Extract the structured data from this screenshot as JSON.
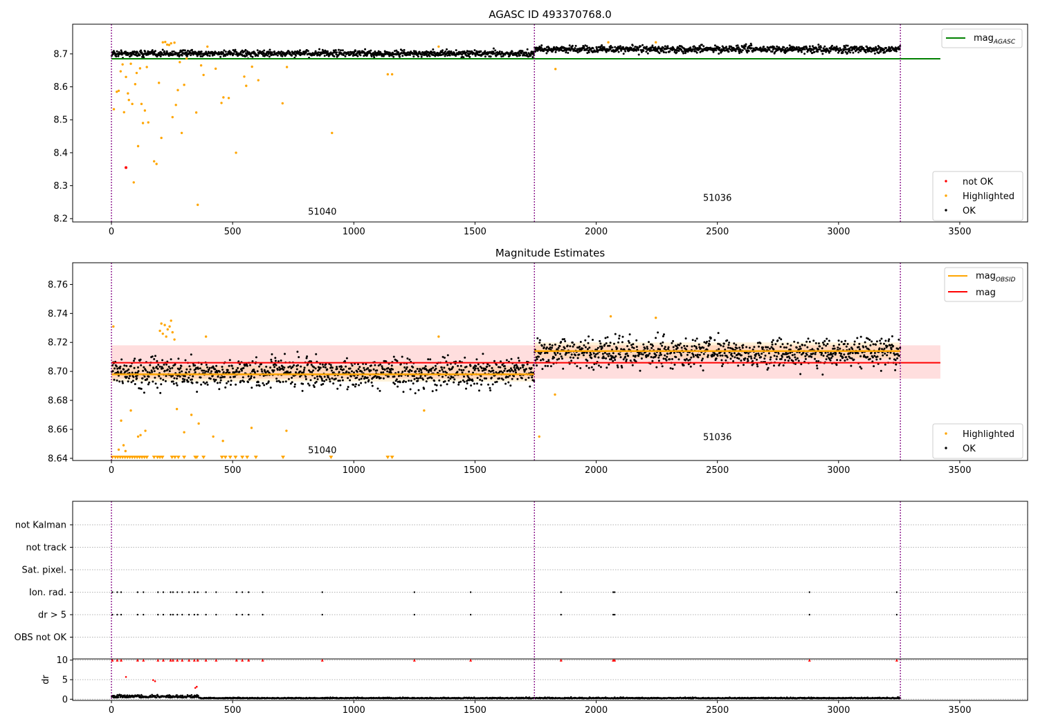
{
  "figure_title": "AGASC ID 493370768.0",
  "chart_data": [
    {
      "panel": "top",
      "type": "scatter",
      "title": "AGASC ID 493370768.0",
      "xlim": [
        -160,
        3780
      ],
      "ylim": [
        8.19,
        8.79
      ],
      "xticks": [
        0,
        500,
        1000,
        1500,
        2000,
        2500,
        3000,
        3500
      ],
      "yticks": [
        8.2,
        8.3,
        8.4,
        8.5,
        8.6,
        8.7
      ],
      "yticklabels": [
        "8.2",
        "8.3",
        "8.4",
        "8.5",
        "8.6",
        "8.7"
      ],
      "grid": false,
      "observation_boundaries": [
        0,
        1745,
        3255
      ],
      "observation_labels": [
        {
          "text": "51040",
          "x": 870,
          "y": 8.212
        },
        {
          "text": "51036",
          "x": 2500,
          "y": 8.254
        }
      ],
      "mag_agasc": {
        "name": "mag_AGASC",
        "label_main": "mag",
        "label_sub": "AGASC",
        "value": 8.685,
        "x_range": [
          0,
          3420
        ],
        "color": "#008000"
      },
      "ok_band_levels": [
        {
          "x_range": [
            0,
            1745
          ],
          "mean": 8.701,
          "spread": 0.008
        },
        {
          "x_range": [
            1745,
            3255
          ],
          "mean": 8.714,
          "spread": 0.009
        }
      ],
      "highlighted_points": [
        [
          10,
          8.532
        ],
        [
          22,
          8.585
        ],
        [
          30,
          8.588
        ],
        [
          38,
          8.647
        ],
        [
          46,
          8.668
        ],
        [
          52,
          8.523
        ],
        [
          60,
          8.63
        ],
        [
          68,
          8.58
        ],
        [
          72,
          8.56
        ],
        [
          80,
          8.67
        ],
        [
          86,
          8.548
        ],
        [
          92,
          8.31
        ],
        [
          98,
          8.608
        ],
        [
          104,
          8.642
        ],
        [
          110,
          8.42
        ],
        [
          118,
          8.656
        ],
        [
          124,
          8.548
        ],
        [
          130,
          8.49
        ],
        [
          138,
          8.528
        ],
        [
          146,
          8.66
        ],
        [
          152,
          8.492
        ],
        [
          176,
          8.374
        ],
        [
          186,
          8.366
        ],
        [
          196,
          8.612
        ],
        [
          206,
          8.445
        ],
        [
          212,
          8.735
        ],
        [
          222,
          8.736
        ],
        [
          230,
          8.728
        ],
        [
          238,
          8.727
        ],
        [
          246,
          8.732
        ],
        [
          252,
          8.508
        ],
        [
          260,
          8.734
        ],
        [
          266,
          8.545
        ],
        [
          274,
          8.59
        ],
        [
          282,
          8.675
        ],
        [
          290,
          8.46
        ],
        [
          300,
          8.606
        ],
        [
          310,
          8.686
        ],
        [
          350,
          8.522
        ],
        [
          356,
          8.242
        ],
        [
          370,
          8.665
        ],
        [
          380,
          8.636
        ],
        [
          396,
          8.722
        ],
        [
          430,
          8.655
        ],
        [
          454,
          8.551
        ],
        [
          462,
          8.568
        ],
        [
          484,
          8.566
        ],
        [
          514,
          8.4
        ],
        [
          548,
          8.631
        ],
        [
          556,
          8.603
        ],
        [
          580,
          8.661
        ],
        [
          606,
          8.62
        ],
        [
          706,
          8.55
        ],
        [
          724,
          8.66
        ],
        [
          910,
          8.46
        ],
        [
          1140,
          8.638
        ],
        [
          1158,
          8.638
        ],
        [
          1350,
          8.722
        ],
        [
          1832,
          8.654
        ],
        [
          2050,
          8.735
        ],
        [
          2246,
          8.735
        ]
      ],
      "not_ok_points": [
        [
          60,
          8.355
        ]
      ],
      "legend_line": {
        "entries": [
          "mag_AGASC"
        ],
        "placement": "upper right"
      },
      "legend_points": {
        "entries": [
          "not OK",
          "Highlighted",
          "OK"
        ],
        "placement": "lower right"
      }
    },
    {
      "panel": "middle",
      "type": "scatter",
      "title": "Magnitude Estimates",
      "xlim": [
        -160,
        3780
      ],
      "ylim": [
        8.6385,
        8.775
      ],
      "xticks": [
        0,
        500,
        1000,
        1500,
        2000,
        2500,
        3000,
        3500
      ],
      "yticks": [
        8.64,
        8.66,
        8.68,
        8.7,
        8.72,
        8.74,
        8.76
      ],
      "yticklabels": [
        "8.64",
        "8.66",
        "8.68",
        "8.70",
        "8.72",
        "8.74",
        "8.76"
      ],
      "grid": false,
      "observation_boundaries": [
        0,
        1745,
        3255
      ],
      "observation_labels": [
        {
          "text": "51040",
          "x": 870,
          "y": 8.6435
        },
        {
          "text": "51036",
          "x": 2500,
          "y": 8.6525
        }
      ],
      "mag": {
        "name": "mag",
        "value": 8.706,
        "band": [
          8.695,
          8.718
        ],
        "x_range": [
          0,
          3420
        ],
        "color": "#ff0000"
      },
      "mag_obsid": [
        {
          "name": "mag_OBSID",
          "x_range": [
            0,
            1745
          ],
          "value": 8.698,
          "band": [
            8.693,
            8.704
          ]
        },
        {
          "name": "mag_OBSID",
          "x_range": [
            1745,
            3255
          ],
          "value": 8.714,
          "band": [
            8.709,
            8.72
          ]
        }
      ],
      "mag_obsid_label": {
        "label_main": "mag",
        "label_sub": "OBSID",
        "color": "#ffa500"
      },
      "ok_band_levels": [
        {
          "x_range": [
            0,
            1745
          ],
          "mean": 8.699,
          "spread": 0.0085
        },
        {
          "x_range": [
            1745,
            3255
          ],
          "mean": 8.713,
          "spread": 0.0085
        }
      ],
      "highlighted_points": [
        [
          8,
          8.731
        ],
        [
          30,
          8.646
        ],
        [
          40,
          8.666
        ],
        [
          50,
          8.649
        ],
        [
          58,
          8.645
        ],
        [
          80,
          8.673
        ],
        [
          110,
          8.655
        ],
        [
          120,
          8.656
        ],
        [
          140,
          8.659
        ],
        [
          200,
          8.728
        ],
        [
          206,
          8.733
        ],
        [
          212,
          8.726
        ],
        [
          220,
          8.732
        ],
        [
          226,
          8.724
        ],
        [
          232,
          8.729
        ],
        [
          240,
          8.731
        ],
        [
          246,
          8.735
        ],
        [
          252,
          8.727
        ],
        [
          260,
          8.722
        ],
        [
          270,
          8.674
        ],
        [
          300,
          8.658
        ],
        [
          330,
          8.67
        ],
        [
          360,
          8.664
        ],
        [
          390,
          8.724
        ],
        [
          420,
          8.655
        ],
        [
          460,
          8.652
        ],
        [
          578,
          8.661
        ],
        [
          722,
          8.659
        ],
        [
          1290,
          8.673
        ],
        [
          1350,
          8.724
        ],
        [
          1765,
          8.655
        ],
        [
          1830,
          8.684
        ],
        [
          2060,
          8.738
        ],
        [
          2246,
          8.737
        ]
      ],
      "clipped_highlighted_x": [
        4,
        16,
        26,
        36,
        46,
        56,
        66,
        76,
        86,
        96,
        106,
        116,
        126,
        136,
        146,
        176,
        190,
        200,
        210,
        250,
        262,
        276,
        300,
        346,
        352,
        380,
        456,
        470,
        490,
        512,
        540,
        560,
        596,
        708,
        906,
        1140,
        1158
      ],
      "legend_line": {
        "entries": [
          "mag_OBSID",
          "mag"
        ],
        "placement": "upper right"
      },
      "legend_points": {
        "entries": [
          "Highlighted",
          "OK"
        ],
        "placement": "lower right"
      }
    },
    {
      "panel": "flags",
      "type": "scatter",
      "xlim": [
        -160,
        3780
      ],
      "categories": [
        "not Kalman",
        "not track",
        "Sat. pixel.",
        "Ion. rad.",
        "dr > 5",
        "OBS not OK"
      ],
      "grid": true,
      "observation_boundaries": [
        0,
        1745,
        3255
      ],
      "flag_points": {
        "Ion. rad.": [
          4,
          24,
          40,
          108,
          132,
          192,
          214,
          244,
          254,
          272,
          292,
          320,
          342,
          356,
          390,
          432,
          516,
          540,
          566,
          624,
          870,
          1250,
          1482,
          1855,
          2070,
          2076,
          2880,
          3240
        ],
        "dr > 5": [
          4,
          24,
          40,
          108,
          132,
          192,
          214,
          244,
          254,
          272,
          292,
          320,
          342,
          356,
          390,
          432,
          516,
          540,
          566,
          624,
          870,
          1250,
          1482,
          1855,
          2070,
          2076,
          2880,
          3240
        ]
      }
    },
    {
      "panel": "dr",
      "type": "scatter",
      "ylabel": "dr",
      "xlim": [
        -160,
        3780
      ],
      "ylim": [
        -0.3,
        10.3
      ],
      "xticks": [
        0,
        500,
        1000,
        1500,
        2000,
        2500,
        3000,
        3500
      ],
      "yticks": [
        0,
        5,
        10
      ],
      "yticklabels": [
        "0",
        "5",
        "10"
      ],
      "grid": true,
      "observation_boundaries": [
        0,
        1745,
        3255
      ],
      "clipped_marker_x": [
        4,
        24,
        40,
        108,
        132,
        192,
        214,
        244,
        254,
        272,
        292,
        320,
        342,
        356,
        390,
        432,
        516,
        540,
        566,
        624,
        870,
        1250,
        1482,
        1855,
        2070,
        2076,
        2880,
        3240
      ],
      "high_points": [
        [
          60,
          5.7
        ],
        [
          172,
          4.9
        ],
        [
          180,
          4.6
        ],
        [
          346,
          2.9
        ],
        [
          352,
          3.2
        ]
      ],
      "noise_levels": [
        {
          "x_range": [
            0,
            360
          ],
          "mean": 0.7,
          "spread": 0.6
        },
        {
          "x_range": [
            360,
            3255
          ],
          "mean": 0.3,
          "spread": 0.18
        }
      ]
    }
  ],
  "colors": {
    "ok": "#000000",
    "highlighted": "#ffa500",
    "not_ok": "#ff0000",
    "mag_agasc": "#008000",
    "mag": "#ff0000",
    "mag_obsid": "#ffa500",
    "boundary": "#800080",
    "grid": "#b0b0b0"
  }
}
